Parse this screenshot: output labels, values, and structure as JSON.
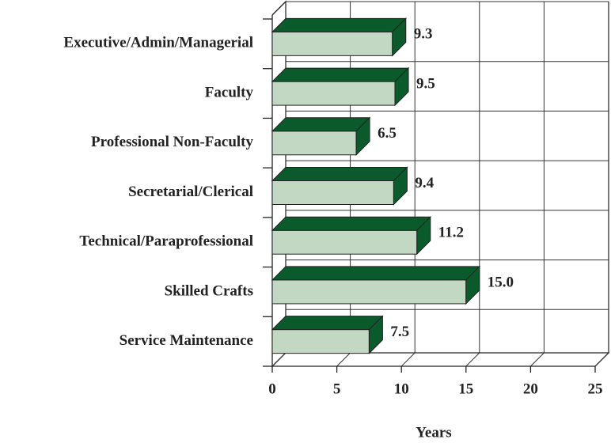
{
  "chart_data": {
    "type": "bar3d_horizontal",
    "categories": [
      "Executive/Admin/Managerial",
      "Faculty",
      "Professional Non-Faculty",
      "Secretarial/Clerical",
      "Technical/Paraprofessional",
      "Skilled Crafts",
      "Service Maintenance"
    ],
    "values": [
      9.3,
      9.5,
      6.5,
      9.4,
      11.2,
      15.0,
      7.5
    ],
    "value_labels": [
      "9.3",
      "9.5",
      "6.5",
      "9.4",
      "11.2",
      "15.0",
      "7.5"
    ],
    "front_color": "#c3d8c3",
    "top_color": "#0b5a2b",
    "xlim": [
      0,
      25
    ],
    "xticks": [
      0,
      5,
      10,
      15,
      20,
      25
    ],
    "xlabel": "Years",
    "grid": true
  }
}
